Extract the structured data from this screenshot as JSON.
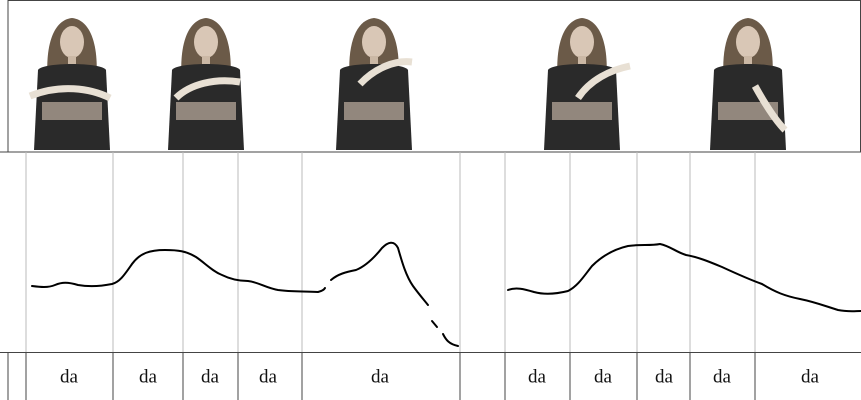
{
  "syllables": [
    "da",
    "da",
    "da",
    "da",
    "da",
    "da",
    "da",
    "da",
    "da",
    "da"
  ]
}
